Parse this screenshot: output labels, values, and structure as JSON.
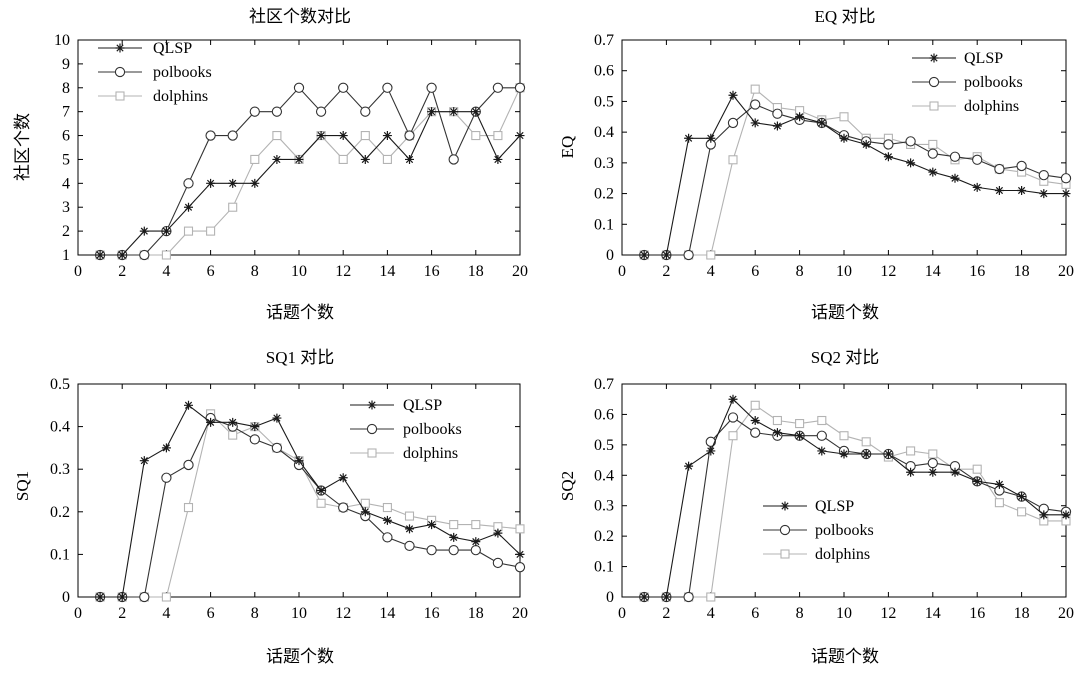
{
  "chart_data": [
    {
      "type": "line",
      "title": "社区个数对比",
      "xlabel": "话题个数",
      "ylabel": "社区个数",
      "xlim": [
        0,
        20
      ],
      "ylim": [
        1,
        10
      ],
      "xticks": [
        0,
        2,
        4,
        6,
        8,
        10,
        12,
        14,
        16,
        18,
        20
      ],
      "yticks": [
        1,
        2,
        3,
        4,
        5,
        6,
        7,
        8,
        9,
        10
      ],
      "legend_position": "top-left",
      "x": [
        1,
        2,
        3,
        4,
        5,
        6,
        7,
        8,
        9,
        10,
        11,
        12,
        13,
        14,
        15,
        16,
        17,
        18,
        19,
        20
      ],
      "series": [
        {
          "name": "QLSP",
          "values": [
            1,
            1,
            2,
            2,
            3,
            4,
            4,
            4,
            5,
            5,
            6,
            6,
            5,
            6,
            5,
            7,
            7,
            7,
            5,
            6
          ]
        },
        {
          "name": "polbooks",
          "values": [
            1,
            1,
            1,
            2,
            4,
            6,
            6,
            7,
            7,
            8,
            7,
            8,
            7,
            8,
            6,
            8,
            5,
            7,
            8,
            8
          ]
        },
        {
          "name": "dolphins",
          "values": [
            1,
            1,
            1,
            1,
            2,
            2,
            3,
            5,
            6,
            5,
            6,
            5,
            6,
            5,
            6,
            7,
            7,
            6,
            6,
            8
          ]
        }
      ]
    },
    {
      "type": "line",
      "title": "EQ 对比",
      "xlabel": "话题个数",
      "ylabel": "EQ",
      "xlim": [
        0,
        20
      ],
      "ylim": [
        0,
        0.7
      ],
      "xticks": [
        0,
        2,
        4,
        6,
        8,
        10,
        12,
        14,
        16,
        18,
        20
      ],
      "yticks": [
        0,
        0.1,
        0.2,
        0.3,
        0.4,
        0.5,
        0.6,
        0.7
      ],
      "legend_position": "top-right",
      "x": [
        1,
        2,
        3,
        4,
        5,
        6,
        7,
        8,
        9,
        10,
        11,
        12,
        13,
        14,
        15,
        16,
        17,
        18,
        19,
        20
      ],
      "series": [
        {
          "name": "QLSP",
          "values": [
            0,
            0,
            0.38,
            0.38,
            0.52,
            0.43,
            0.42,
            0.45,
            0.43,
            0.38,
            0.36,
            0.32,
            0.3,
            0.27,
            0.25,
            0.22,
            0.21,
            0.21,
            0.2,
            0.2
          ]
        },
        {
          "name": "polbooks",
          "values": [
            0,
            0,
            0,
            0.36,
            0.43,
            0.49,
            0.46,
            0.44,
            0.43,
            0.39,
            0.37,
            0.36,
            0.37,
            0.33,
            0.32,
            0.31,
            0.28,
            0.29,
            0.26,
            0.25
          ]
        },
        {
          "name": "dolphins",
          "values": [
            0,
            0,
            0,
            0,
            0.31,
            0.54,
            0.48,
            0.47,
            0.44,
            0.45,
            0.38,
            0.38,
            0.36,
            0.36,
            0.31,
            0.32,
            0.28,
            0.27,
            0.24,
            0.23
          ]
        }
      ]
    },
    {
      "type": "line",
      "title": "SQ1 对比",
      "xlabel": "话题个数",
      "ylabel": "SQ1",
      "xlim": [
        0,
        20
      ],
      "ylim": [
        0,
        0.5
      ],
      "xticks": [
        0,
        2,
        4,
        6,
        8,
        10,
        12,
        14,
        16,
        18,
        20
      ],
      "yticks": [
        0,
        0.1,
        0.2,
        0.3,
        0.4,
        0.5
      ],
      "legend_position": "top-right",
      "x": [
        1,
        2,
        3,
        4,
        5,
        6,
        7,
        8,
        9,
        10,
        11,
        12,
        13,
        14,
        15,
        16,
        17,
        18,
        19,
        20
      ],
      "series": [
        {
          "name": "QLSP",
          "values": [
            0,
            0,
            0.32,
            0.35,
            0.45,
            0.41,
            0.41,
            0.4,
            0.42,
            0.32,
            0.25,
            0.28,
            0.2,
            0.18,
            0.16,
            0.17,
            0.14,
            0.13,
            0.15,
            0.1
          ]
        },
        {
          "name": "polbooks",
          "values": [
            0,
            0,
            0,
            0.28,
            0.31,
            0.42,
            0.4,
            0.37,
            0.35,
            0.31,
            0.25,
            0.21,
            0.19,
            0.14,
            0.12,
            0.11,
            0.11,
            0.11,
            0.08,
            0.07
          ]
        },
        {
          "name": "dolphins",
          "values": [
            0,
            0,
            0,
            0,
            0.21,
            0.43,
            0.38,
            0.4,
            0.35,
            0.32,
            0.22,
            0.21,
            0.22,
            0.21,
            0.19,
            0.18,
            0.17,
            0.17,
            0.165,
            0.16
          ]
        }
      ]
    },
    {
      "type": "line",
      "title": "SQ2 对比",
      "xlabel": "话题个数",
      "ylabel": "SQ2",
      "xlim": [
        0,
        20
      ],
      "ylim": [
        0,
        0.7
      ],
      "xticks": [
        0,
        2,
        4,
        6,
        8,
        10,
        12,
        14,
        16,
        18,
        20
      ],
      "yticks": [
        0,
        0.1,
        0.2,
        0.3,
        0.4,
        0.5,
        0.6,
        0.7
      ],
      "legend_position": "center",
      "x": [
        1,
        2,
        3,
        4,
        5,
        6,
        7,
        8,
        9,
        10,
        11,
        12,
        13,
        14,
        15,
        16,
        17,
        18,
        19,
        20
      ],
      "series": [
        {
          "name": "QLSP",
          "values": [
            0,
            0,
            0.43,
            0.48,
            0.65,
            0.58,
            0.54,
            0.53,
            0.48,
            0.47,
            0.47,
            0.47,
            0.41,
            0.41,
            0.41,
            0.38,
            0.37,
            0.33,
            0.27,
            0.27
          ]
        },
        {
          "name": "polbooks",
          "values": [
            0,
            0,
            0,
            0.51,
            0.59,
            0.54,
            0.53,
            0.53,
            0.53,
            0.48,
            0.47,
            0.47,
            0.43,
            0.44,
            0.43,
            0.38,
            0.35,
            0.33,
            0.29,
            0.28
          ]
        },
        {
          "name": "dolphins",
          "values": [
            0,
            0,
            0,
            0,
            0.53,
            0.63,
            0.58,
            0.57,
            0.58,
            0.53,
            0.51,
            0.46,
            0.48,
            0.47,
            0.42,
            0.42,
            0.31,
            0.28,
            0.25,
            0.25
          ]
        }
      ]
    }
  ],
  "style": {
    "series_colors": [
      "#1a1a1a",
      "#333333",
      "#b3b3b3"
    ],
    "series_markers": [
      "asterisk",
      "circle",
      "square"
    ],
    "watermark_color": "#eeeeee"
  }
}
